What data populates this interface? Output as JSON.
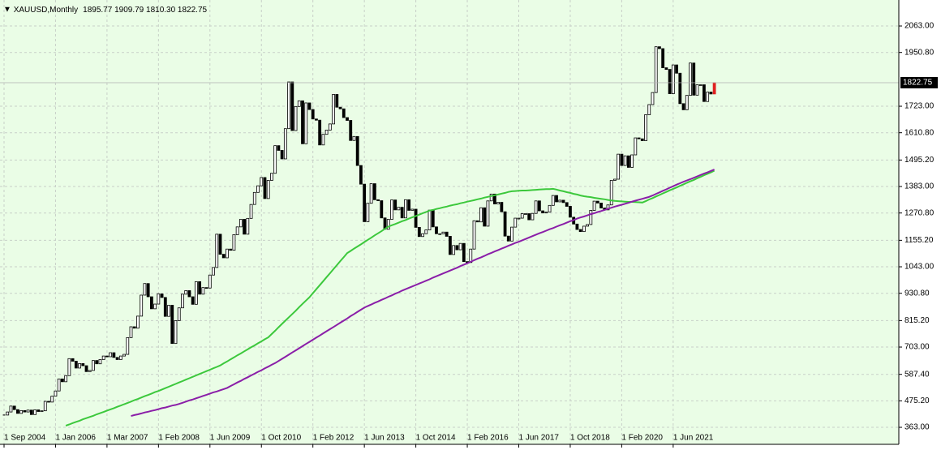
{
  "chart_data": {
    "type": "candlestick",
    "header": {
      "symbol": "XAUUSD,Monthly",
      "ohlc": "1895.77 1909.79 1810.30 1822.75"
    },
    "current_price": {
      "value": 1822.75,
      "label": "1822.75"
    },
    "grid": true,
    "colors": {
      "background": "#eafde6",
      "up": "#ffffff",
      "down": "#000000",
      "current": "#e02020"
    },
    "ylim": [
      291,
      2173
    ],
    "yticks": [
      {
        "value": 363,
        "label": "363.00"
      },
      {
        "value": 475.2,
        "label": "475.20"
      },
      {
        "value": 587.4,
        "label": "587.40"
      },
      {
        "value": 703,
        "label": "703.00"
      },
      {
        "value": 815.2,
        "label": "815.20"
      },
      {
        "value": 930.8,
        "label": "930.80"
      },
      {
        "value": 1043,
        "label": "1043.00"
      },
      {
        "value": 1155.2,
        "label": "1155.20"
      },
      {
        "value": 1270.8,
        "label": "1270.80"
      },
      {
        "value": 1383,
        "label": "1383.00"
      },
      {
        "value": 1495.2,
        "label": "1495.20"
      },
      {
        "value": 1610.8,
        "label": "1610.80"
      },
      {
        "value": 1723,
        "label": "1723.00"
      },
      {
        "value": 1950.8,
        "label": "1950.80"
      },
      {
        "value": 2063,
        "label": "2063.00"
      }
    ],
    "categories": [
      "1 Sep 2004",
      null,
      null,
      null,
      null,
      null,
      null,
      null,
      null,
      null,
      null,
      null,
      null,
      null,
      null,
      "1 Jan 2006",
      null,
      null,
      null,
      null,
      null,
      null,
      null,
      null,
      null,
      null,
      null,
      null,
      null,
      null,
      "1 Mar 2007",
      null,
      null,
      null,
      null,
      null,
      null,
      null,
      null,
      null,
      null,
      null,
      null,
      null,
      null,
      "1 Feb 2008",
      null,
      null,
      null,
      null,
      null,
      null,
      null,
      null,
      null,
      null,
      null,
      null,
      null,
      null,
      "1 Jun 2009",
      null,
      null,
      null,
      null,
      null,
      null,
      null,
      null,
      null,
      null,
      null,
      null,
      null,
      null,
      "1 Oct 2010",
      null,
      null,
      null,
      null,
      null,
      null,
      null,
      null,
      null,
      null,
      null,
      null,
      null,
      null,
      "1 Feb 2012",
      null,
      null,
      null,
      null,
      null,
      null,
      null,
      null,
      null,
      null,
      null,
      null,
      null,
      null,
      "1 Jun 2013",
      null,
      null,
      null,
      null,
      null,
      null,
      null,
      null,
      null,
      null,
      null,
      null,
      null,
      null,
      "1 Oct 2014",
      null,
      null,
      null,
      null,
      null,
      null,
      null,
      null,
      null,
      null,
      null,
      null,
      null,
      null,
      "1 Feb 2016",
      null,
      null,
      null,
      null,
      null,
      null,
      null,
      null,
      null,
      null,
      null,
      null,
      null,
      null,
      "1 Jun 2017",
      null,
      null,
      null,
      null,
      null,
      null,
      null,
      null,
      null,
      null,
      null,
      null,
      null,
      null,
      "1 Oct 2018",
      null,
      null,
      null,
      null,
      null,
      null,
      null,
      null,
      null,
      null,
      null,
      null,
      null,
      null,
      "1 Feb 2020",
      null,
      null,
      null,
      null,
      null,
      null,
      null,
      null,
      null,
      null,
      null,
      null,
      null,
      null,
      "1 Jun 2021",
      null,
      null,
      null,
      null,
      null,
      null,
      null,
      null,
      null,
      null,
      null,
      null
    ],
    "close": [
      415,
      428,
      453,
      438,
      422,
      434,
      428,
      436,
      417,
      437,
      430,
      433,
      473,
      470,
      495,
      517,
      568,
      556,
      582,
      654,
      643,
      614,
      633,
      624,
      599,
      604,
      646,
      632,
      650,
      665,
      662,
      679,
      659,
      650,
      665,
      672,
      743,
      789,
      783,
      834,
      923,
      972,
      916,
      865,
      885,
      928,
      913,
      833,
      880,
      718,
      815,
      869,
      927,
      942,
      916,
      884,
      980,
      927,
      955,
      953,
      1008,
      1040,
      1181,
      1096,
      1081,
      1118,
      1113,
      1179,
      1212,
      1244,
      1181,
      1248,
      1307,
      1358,
      1386,
      1421,
      1332,
      1409,
      1439,
      1556,
      1536,
      1500,
      1628,
      1826,
      1620,
      1722,
      1746,
      1564,
      1737,
      1709,
      1669,
      1664,
      1559,
      1604,
      1622,
      1648,
      1773,
      1719,
      1712,
      1675,
      1663,
      1578,
      1595,
      1472,
      1393,
      1234,
      1312,
      1395,
      1327,
      1323,
      1250,
      1202,
      1244,
      1326,
      1284,
      1295,
      1250,
      1327,
      1282,
      1287,
      1210,
      1171,
      1183,
      1199,
      1283,
      1212,
      1183,
      1183,
      1190,
      1172,
      1095,
      1133,
      1115,
      1142,
      1065,
      1061,
      1118,
      1238,
      1233,
      1293,
      1215,
      1322,
      1351,
      1309,
      1316,
      1276,
      1173,
      1152,
      1211,
      1249,
      1249,
      1268,
      1268,
      1242,
      1269,
      1322,
      1280,
      1271,
      1275,
      1303,
      1345,
      1318,
      1325,
      1315,
      1299,
      1253,
      1224,
      1201,
      1192,
      1215,
      1222,
      1282,
      1321,
      1313,
      1292,
      1284,
      1305,
      1409,
      1414,
      1520,
      1472,
      1513,
      1464,
      1517,
      1589,
      1585,
      1577,
      1687,
      1730,
      1781,
      1975,
      1967,
      1886,
      1879,
      1776,
      1898,
      1863,
      1734,
      1708,
      1769,
      1906,
      1770,
      1814,
      1814,
      1743,
      1783,
      1775,
      1822.75
    ],
    "moving_averages": [
      {
        "color": "#3cc83c",
        "values": [
          null,
          null,
          null,
          null,
          null,
          null,
          null,
          null,
          null,
          null,
          null,
          null,
          null,
          null,
          null,
          null,
          null,
          null,
          370,
          375,
          381,
          386,
          391,
          397,
          402,
          407,
          412,
          418,
          423,
          428,
          434,
          439,
          444,
          450,
          455,
          461,
          466,
          472,
          478,
          483,
          489,
          495,
          500,
          506,
          512,
          517,
          523,
          529,
          535,
          541,
          547,
          553,
          559,
          565,
          571,
          577,
          583,
          589,
          595,
          601,
          607,
          613,
          619,
          625,
          634,
          642,
          651,
          659,
          668,
          676,
          685,
          693,
          702,
          710,
          719,
          727,
          736,
          744,
          758,
          772,
          787,
          801,
          815,
          829,
          843,
          857,
          872,
          886,
          900,
          914,
          931,
          948,
          965,
          982,
          999,
          1016,
          1033,
          1050,
          1067,
          1084,
          1101,
          1110,
          1120,
          1129,
          1138,
          1148,
          1157,
          1166,
          1176,
          1185,
          1194,
          1204,
          1213,
          1219,
          1224,
          1230,
          1236,
          1241,
          1247,
          1253,
          1258,
          1264,
          1270,
          1275,
          1281,
          1284,
          1288,
          1291,
          1295,
          1298,
          1302,
          1305,
          1308,
          1312,
          1315,
          1319,
          1322,
          1325,
          1329,
          1332,
          1336,
          1339,
          1343,
          1346,
          1349,
          1353,
          1356,
          1360,
          1363,
          1364,
          1365,
          1366,
          1366,
          1367,
          1368,
          1369,
          1370,
          1371,
          1372,
          1372,
          1373,
          1370,
          1366,
          1363,
          1359,
          1356,
          1352,
          1349,
          1345,
          1342,
          1340,
          1338,
          1335,
          1333,
          1331,
          1329,
          1326,
          1324,
          1322,
          1321,
          1320,
          1319,
          1318,
          1318,
          1317,
          1316,
          1315,
          1321,
          1328,
          1334,
          1341,
          1347,
          1354,
          1360,
          1367,
          1373,
          1379,
          1386,
          1392,
          1399,
          1405,
          1411,
          1418,
          1424,
          1431,
          1437,
          1443,
          1450
        ]
      },
      {
        "color": "#8a1ea8",
        "values": [
          null,
          null,
          null,
          null,
          null,
          null,
          null,
          null,
          null,
          null,
          null,
          null,
          null,
          null,
          null,
          null,
          null,
          null,
          null,
          null,
          null,
          null,
          null,
          null,
          null,
          null,
          null,
          null,
          null,
          null,
          null,
          null,
          null,
          null,
          null,
          null,
          null,
          411,
          415,
          418,
          422,
          426,
          429,
          433,
          436,
          440,
          444,
          447,
          451,
          455,
          458,
          462,
          467,
          472,
          477,
          481,
          486,
          491,
          496,
          501,
          506,
          511,
          515,
          520,
          525,
          530,
          538,
          545,
          553,
          560,
          568,
          575,
          583,
          590,
          598,
          605,
          613,
          620,
          628,
          635,
          644,
          653,
          662,
          671,
          680,
          689,
          698,
          707,
          716,
          725,
          734,
          743,
          752,
          761,
          770,
          779,
          788,
          797,
          806,
          815,
          824,
          834,
          843,
          852,
          861,
          870,
          877,
          883,
          890,
          896,
          903,
          909,
          916,
          922,
          929,
          935,
          942,
          948,
          954,
          960,
          966,
          972,
          978,
          984,
          990,
          997,
          1003,
          1009,
          1015,
          1021,
          1027,
          1033,
          1039,
          1046,
          1052,
          1058,
          1064,
          1071,
          1077,
          1083,
          1089,
          1096,
          1102,
          1108,
          1114,
          1120,
          1126,
          1132,
          1138,
          1144,
          1149,
          1155,
          1161,
          1167,
          1173,
          1179,
          1185,
          1190,
          1196,
          1202,
          1207,
          1213,
          1219,
          1224,
          1230,
          1236,
          1241,
          1247,
          1252,
          1256,
          1261,
          1266,
          1270,
          1275,
          1279,
          1284,
          1289,
          1293,
          1298,
          1302,
          1306,
          1310,
          1314,
          1319,
          1323,
          1327,
          1331,
          1335,
          1339,
          1345,
          1352,
          1358,
          1365,
          1371,
          1378,
          1384,
          1391,
          1397,
          1403,
          1409,
          1414,
          1420,
          1426,
          1432,
          1438,
          1443,
          1449,
          1455
        ]
      }
    ]
  }
}
